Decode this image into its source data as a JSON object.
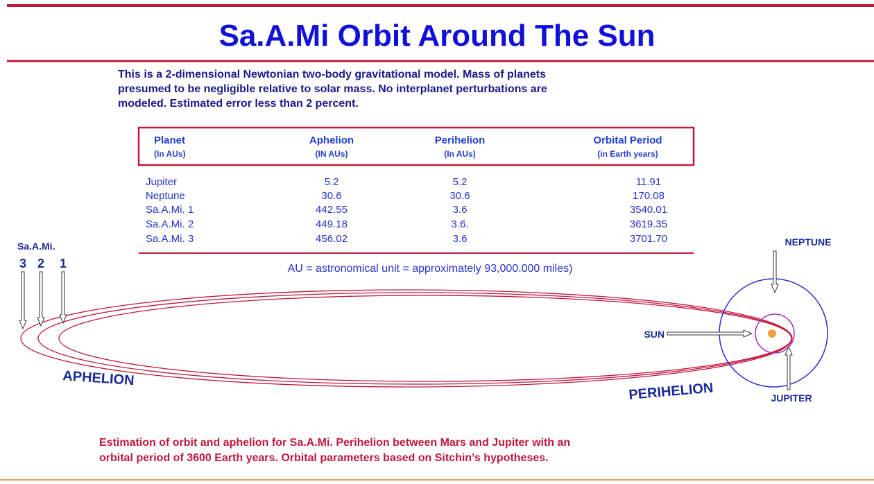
{
  "title": "Sa.A.Mi Orbit Around The Sun",
  "intro": [
    "This is a 2-dimensional Newtonian two-body gravitational model. Mass of planets",
    "presumed to be negligible relative to solar mass. No interplanet perturbations are",
    "modeled. Estimated error less than 2 percent."
  ],
  "table": {
    "headers": [
      [
        "Planet",
        "(In AUs)"
      ],
      [
        "Aphelion",
        "(IN AUs)"
      ],
      [
        "Perihelion",
        "(In AUs)"
      ],
      [
        "Orbital Period",
        "(in Earth years)"
      ]
    ],
    "rows": [
      [
        "Jupiter",
        "5.2",
        "5.2",
        "11.91"
      ],
      [
        "Neptune",
        "30.6",
        "30.6",
        "170.08"
      ],
      [
        "Sa.A.Mi. 1",
        "442.55",
        "3.6",
        "3540.01"
      ],
      [
        "Sa.A.Mi. 2",
        "449.18",
        "3.6.",
        "3619.35"
      ],
      [
        "Sa.A.Mi. 3",
        "456.02",
        "3.6",
        "3701.70"
      ]
    ]
  },
  "note": "AU = astronomical unit = approximately 93,000.000 miles)",
  "labels": {
    "samii": "Sa.A.Mi.",
    "orbit_numbers": [
      "3",
      "2",
      "1"
    ],
    "neptune": "NEPTUNE",
    "sun": "SUN",
    "jupiter": "JUPITER",
    "aphelion": "APHELION",
    "perihelion": "PERIHELION"
  },
  "footer": [
    "Estimation of orbit and aphelion for Sa.A.Mi. Perihelion between Mars and Jupiter with an",
    "orbital period of 3600 Earth years. Orbital parameters based on Sitchin’s hypotheses."
  ]
}
